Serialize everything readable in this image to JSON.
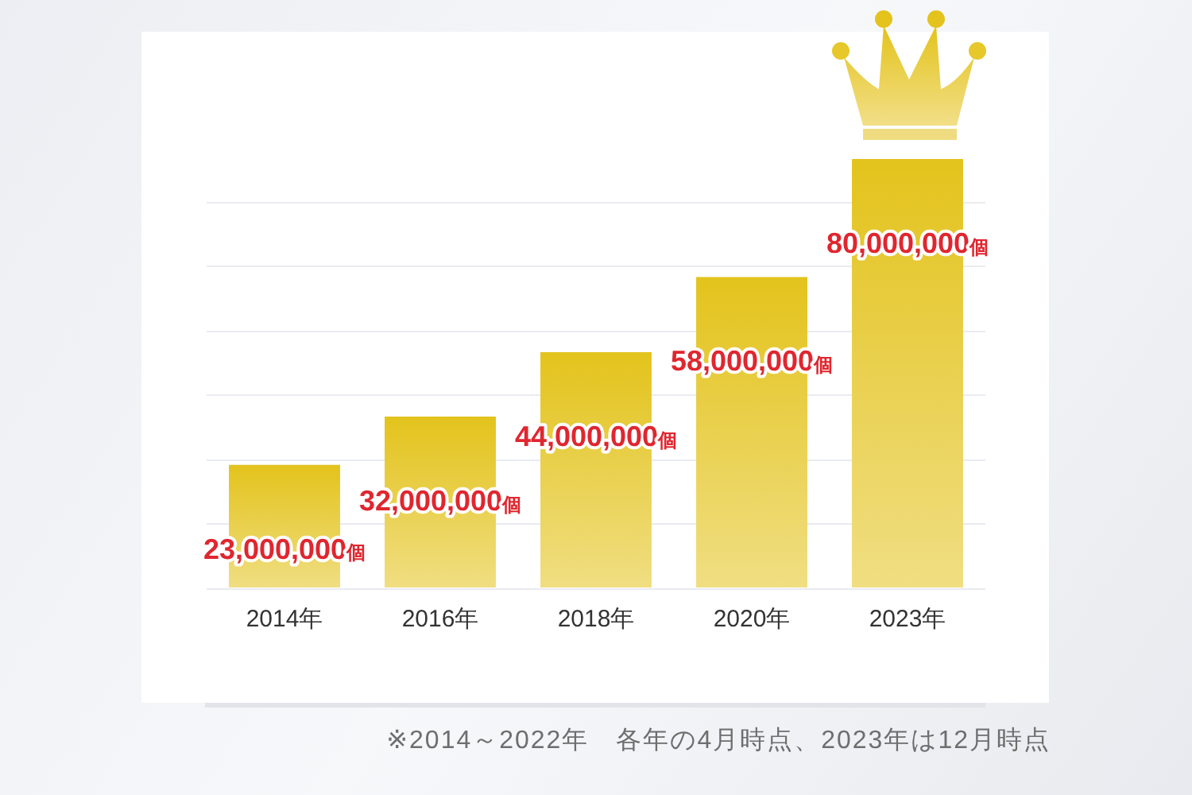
{
  "chart_data": {
    "type": "bar",
    "categories": [
      "2014年",
      "2016年",
      "2018年",
      "2020年",
      "2023年"
    ],
    "values": [
      23000000,
      32000000,
      44000000,
      58000000,
      80000000
    ],
    "color": "#e3c31c",
    "value_labels": [
      "23,000,000個",
      "32,000,000個",
      "44,000,000個",
      "58,000,000個",
      "80,000,000個"
    ],
    "yticks": [
      {
        "value": 0,
        "label": null
      },
      {
        "value": 12000000,
        "label": null
      },
      {
        "value": 24000000,
        "label": null
      },
      {
        "value": 36000000,
        "label": null
      },
      {
        "value": 48000000,
        "label": null
      },
      {
        "value": 60000000,
        "label": null
      },
      {
        "value": 72000000,
        "label": null
      }
    ],
    "grid": "y",
    "tick_labels": "x",
    "legend": false,
    "annotations": [
      "※2014～2022年　各年の4月時点、2023年は12月時点"
    ]
  }
}
